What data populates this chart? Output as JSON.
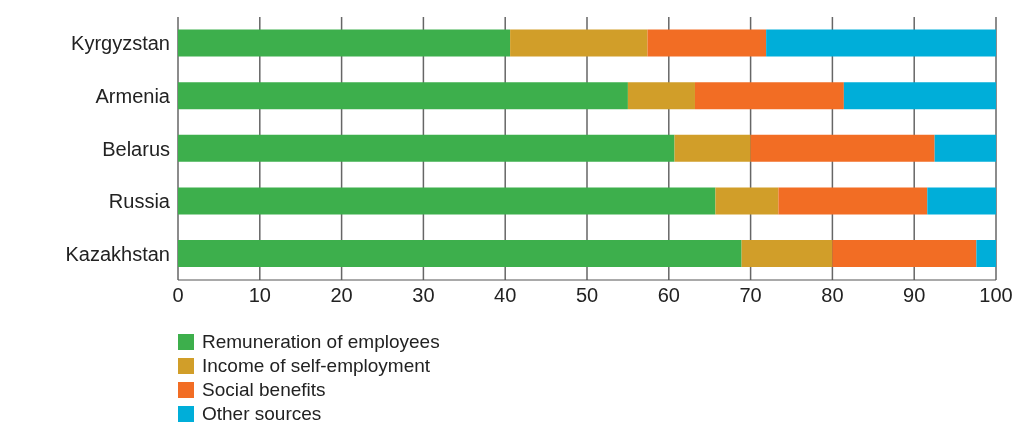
{
  "chart_data": {
    "type": "bar",
    "orientation": "horizontal",
    "stacked": true,
    "categories": [
      "Kyrgyzstan",
      "Armenia",
      "Belarus",
      "Russia",
      "Kazakhstan"
    ],
    "series": [
      {
        "name": "Remuneration of employees",
        "color": "#3daf4c",
        "values": [
          40.6,
          55.0,
          60.7,
          65.7,
          68.9
        ]
      },
      {
        "name": "Income of self-employment",
        "color": "#d19e29",
        "values": [
          16.8,
          8.2,
          9.3,
          7.7,
          11.1
        ]
      },
      {
        "name": "Social benefits",
        "color": "#f26d24",
        "values": [
          14.5,
          18.2,
          22.5,
          18.2,
          17.6
        ]
      },
      {
        "name": "Other sources",
        "color": "#00aed9",
        "values": [
          28.1,
          18.6,
          7.5,
          8.4,
          2.4
        ]
      }
    ],
    "xlim": [
      0,
      100
    ],
    "xticks": [
      0,
      10,
      20,
      30,
      40,
      50,
      60,
      70,
      80,
      90,
      100
    ],
    "grid": "x",
    "legend": "bottom left"
  }
}
